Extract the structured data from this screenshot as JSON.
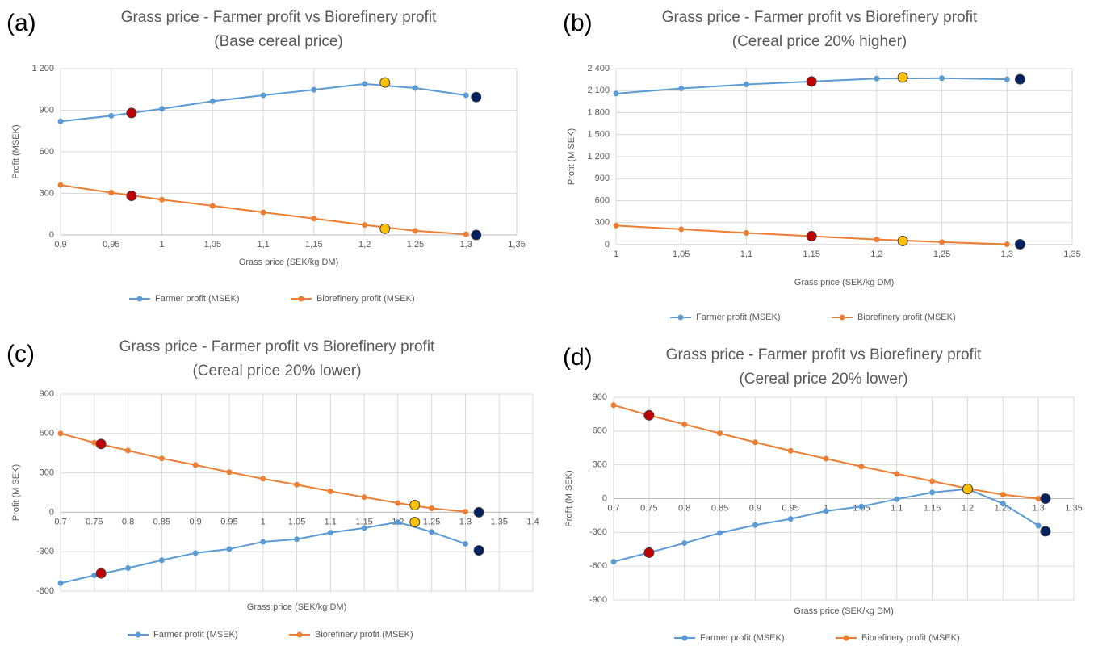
{
  "chart_data": [
    {
      "type": "line",
      "panel": "(a)",
      "title": "Grass price - Farmer profit vs Biorefinery profit",
      "subtitle": "(Base cereal price)",
      "x_label": "Grass price (SEK/kg DM)",
      "y_label": "Profit (MSEK)",
      "x": [
        0.9,
        0.95,
        1.0,
        1.05,
        1.1,
        1.15,
        1.2,
        1.25,
        1.3
      ],
      "series": [
        {
          "name": "Farmer profit (MSEK)",
          "color": "#5b9bd5",
          "values": [
            820,
            860,
            910,
            965,
            1008,
            1048,
            1090,
            1060,
            1008
          ],
          "highlight_values": [
            880,
            1100,
            995
          ]
        },
        {
          "name": "Biorefinery profit (MSEK)",
          "color": "#ed7d31",
          "values": [
            360,
            305,
            255,
            210,
            163,
            118,
            72,
            30,
            5
          ],
          "highlight_values": [
            282,
            45,
            0
          ]
        }
      ],
      "highlight_x": [
        0.97,
        1.22,
        1.31
      ],
      "highlight_colors": [
        "#c00000",
        "#ffc000",
        "#002060"
      ],
      "xlim": [
        0.9,
        1.35
      ],
      "xticks": [
        {
          "value": 0.9,
          "label": "0,9"
        },
        {
          "value": 0.95,
          "label": "0,95"
        },
        1,
        {
          "value": 1.05,
          "label": "1,05"
        },
        {
          "value": 1.1,
          "label": "1,1"
        },
        {
          "value": 1.15,
          "label": "1,15"
        },
        {
          "value": 1.2,
          "label": "1,2"
        },
        {
          "value": 1.25,
          "label": "1,25"
        },
        {
          "value": 1.3,
          "label": "1,3"
        },
        {
          "value": 1.35,
          "label": "1,35"
        }
      ],
      "ylim": [
        0,
        1200
      ],
      "yticks": [
        0,
        300,
        600,
        900,
        {
          "value": 1200,
          "label": "1 200"
        }
      ],
      "grid": true
    },
    {
      "type": "line",
      "panel": "(b)",
      "title": "Grass price - Farmer profit vs Biorefinery profit",
      "subtitle": "(Cereal price 20% higher)",
      "x_label": "Grass price (SEK/kg DM)",
      "y_label": "Profit (M SEK)",
      "x": [
        1.0,
        1.05,
        1.1,
        1.15,
        1.2,
        1.25,
        1.3
      ],
      "series": [
        {
          "name": "Farmer profit (MSEK)",
          "color": "#5b9bd5",
          "values": [
            2060,
            2130,
            2185,
            2225,
            2265,
            2270,
            2255
          ],
          "highlight_values": [
            2225,
            2280,
            2255
          ]
        },
        {
          "name": "Biorefinery profit (MSEK)",
          "color": "#ed7d31",
          "values": [
            260,
            210,
            160,
            115,
            70,
            35,
            5
          ],
          "highlight_values": [
            115,
            50,
            5
          ]
        }
      ],
      "highlight_x": [
        1.15,
        1.22,
        1.31
      ],
      "highlight_colors": [
        "#c00000",
        "#ffc000",
        "#002060"
      ],
      "xlim": [
        1,
        1.35
      ],
      "xticks": [
        1,
        {
          "value": 1.05,
          "label": "1,05"
        },
        {
          "value": 1.1,
          "label": "1,1"
        },
        {
          "value": 1.15,
          "label": "1,15"
        },
        {
          "value": 1.2,
          "label": "1,2"
        },
        {
          "value": 1.25,
          "label": "1,25"
        },
        {
          "value": 1.3,
          "label": "1,3"
        },
        {
          "value": 1.35,
          "label": "1,35"
        }
      ],
      "ylim": [
        0,
        2400
      ],
      "yticks": [
        0,
        300,
        600,
        900,
        {
          "value": 1200,
          "label": "1 200"
        },
        {
          "value": 1500,
          "label": "1 500"
        },
        {
          "value": 1800,
          "label": "1 800"
        },
        {
          "value": 2100,
          "label": "2 100"
        },
        {
          "value": 2400,
          "label": "2 400"
        }
      ],
      "grid": true
    },
    {
      "type": "line",
      "panel": "(c)",
      "title": "Grass price - Farmer profit vs Biorefinery profit",
      "subtitle": "(Cereal price 20% lower)",
      "x_label": "Grass price (SEK/kg DM)",
      "y_label": "Profit (M SEK)",
      "x": [
        0.7,
        0.75,
        0.8,
        0.85,
        0.9,
        0.95,
        1.0,
        1.05,
        1.1,
        1.15,
        1.2,
        1.25,
        1.3
      ],
      "series": [
        {
          "name": "Farmer profit (MSEK)",
          "color": "#5b9bd5",
          "values": [
            -540,
            -480,
            -425,
            -365,
            -310,
            -280,
            -225,
            -205,
            -155,
            -120,
            -75,
            -150,
            -240
          ],
          "highlight_values": [
            -465,
            -75,
            -290
          ]
        },
        {
          "name": "Biorefinery profit (MSEK)",
          "color": "#ed7d31",
          "values": [
            600,
            530,
            470,
            410,
            360,
            305,
            255,
            210,
            160,
            115,
            70,
            30,
            5
          ],
          "highlight_values": [
            520,
            55,
            0
          ]
        }
      ],
      "highlight_x": [
        0.76,
        1.225,
        1.32
      ],
      "highlight_colors": [
        "#c00000",
        "#ffc000",
        "#002060"
      ],
      "xlim": [
        0.7,
        1.4
      ],
      "xticks": [
        0.7,
        0.75,
        0.8,
        0.85,
        0.9,
        0.95,
        1,
        1.05,
        1.1,
        1.15,
        1.2,
        1.25,
        1.3,
        1.35,
        1.4
      ],
      "ylim": [
        -600,
        900
      ],
      "yticks": [
        -600,
        -300,
        0,
        300,
        600,
        900
      ],
      "grid": true
    },
    {
      "type": "line",
      "panel": "(d)",
      "title": "Grass price - Farmer profit vs Biorefinery profit",
      "subtitle": "(Cereal price 20% lower)",
      "x_label": "Grass price (SEK/kg DM)",
      "y_label": "Profit (M SEK)",
      "x": [
        0.7,
        0.75,
        0.8,
        0.85,
        0.9,
        0.95,
        1.0,
        1.05,
        1.1,
        1.15,
        1.2,
        1.25,
        1.3
      ],
      "series": [
        {
          "name": "Farmer profit (MSEK)",
          "color": "#5b9bd5",
          "values": [
            -560,
            -480,
            -395,
            -305,
            -235,
            -180,
            -110,
            -70,
            -5,
            55,
            85,
            -45,
            -240
          ],
          "highlight_values": [
            -480,
            85,
            -290
          ]
        },
        {
          "name": "Biorefinery profit (MSEK)",
          "color": "#ed7d31",
          "values": [
            830,
            740,
            660,
            580,
            500,
            425,
            355,
            285,
            220,
            155,
            90,
            35,
            0
          ],
          "highlight_values": [
            740,
            85,
            0
          ]
        }
      ],
      "highlight_x": [
        0.75,
        1.2,
        1.31
      ],
      "highlight_colors": [
        "#c00000",
        "#ffc000",
        "#002060"
      ],
      "xlim": [
        0.7,
        1.35
      ],
      "xticks": [
        0.7,
        0.75,
        0.8,
        0.85,
        0.9,
        0.95,
        1,
        1.05,
        1.1,
        1.15,
        1.2,
        1.25,
        1.3,
        1.35
      ],
      "ylim": [
        -900,
        900
      ],
      "yticks": [
        -900,
        -600,
        -300,
        0,
        300,
        600,
        900
      ],
      "grid": true
    }
  ]
}
